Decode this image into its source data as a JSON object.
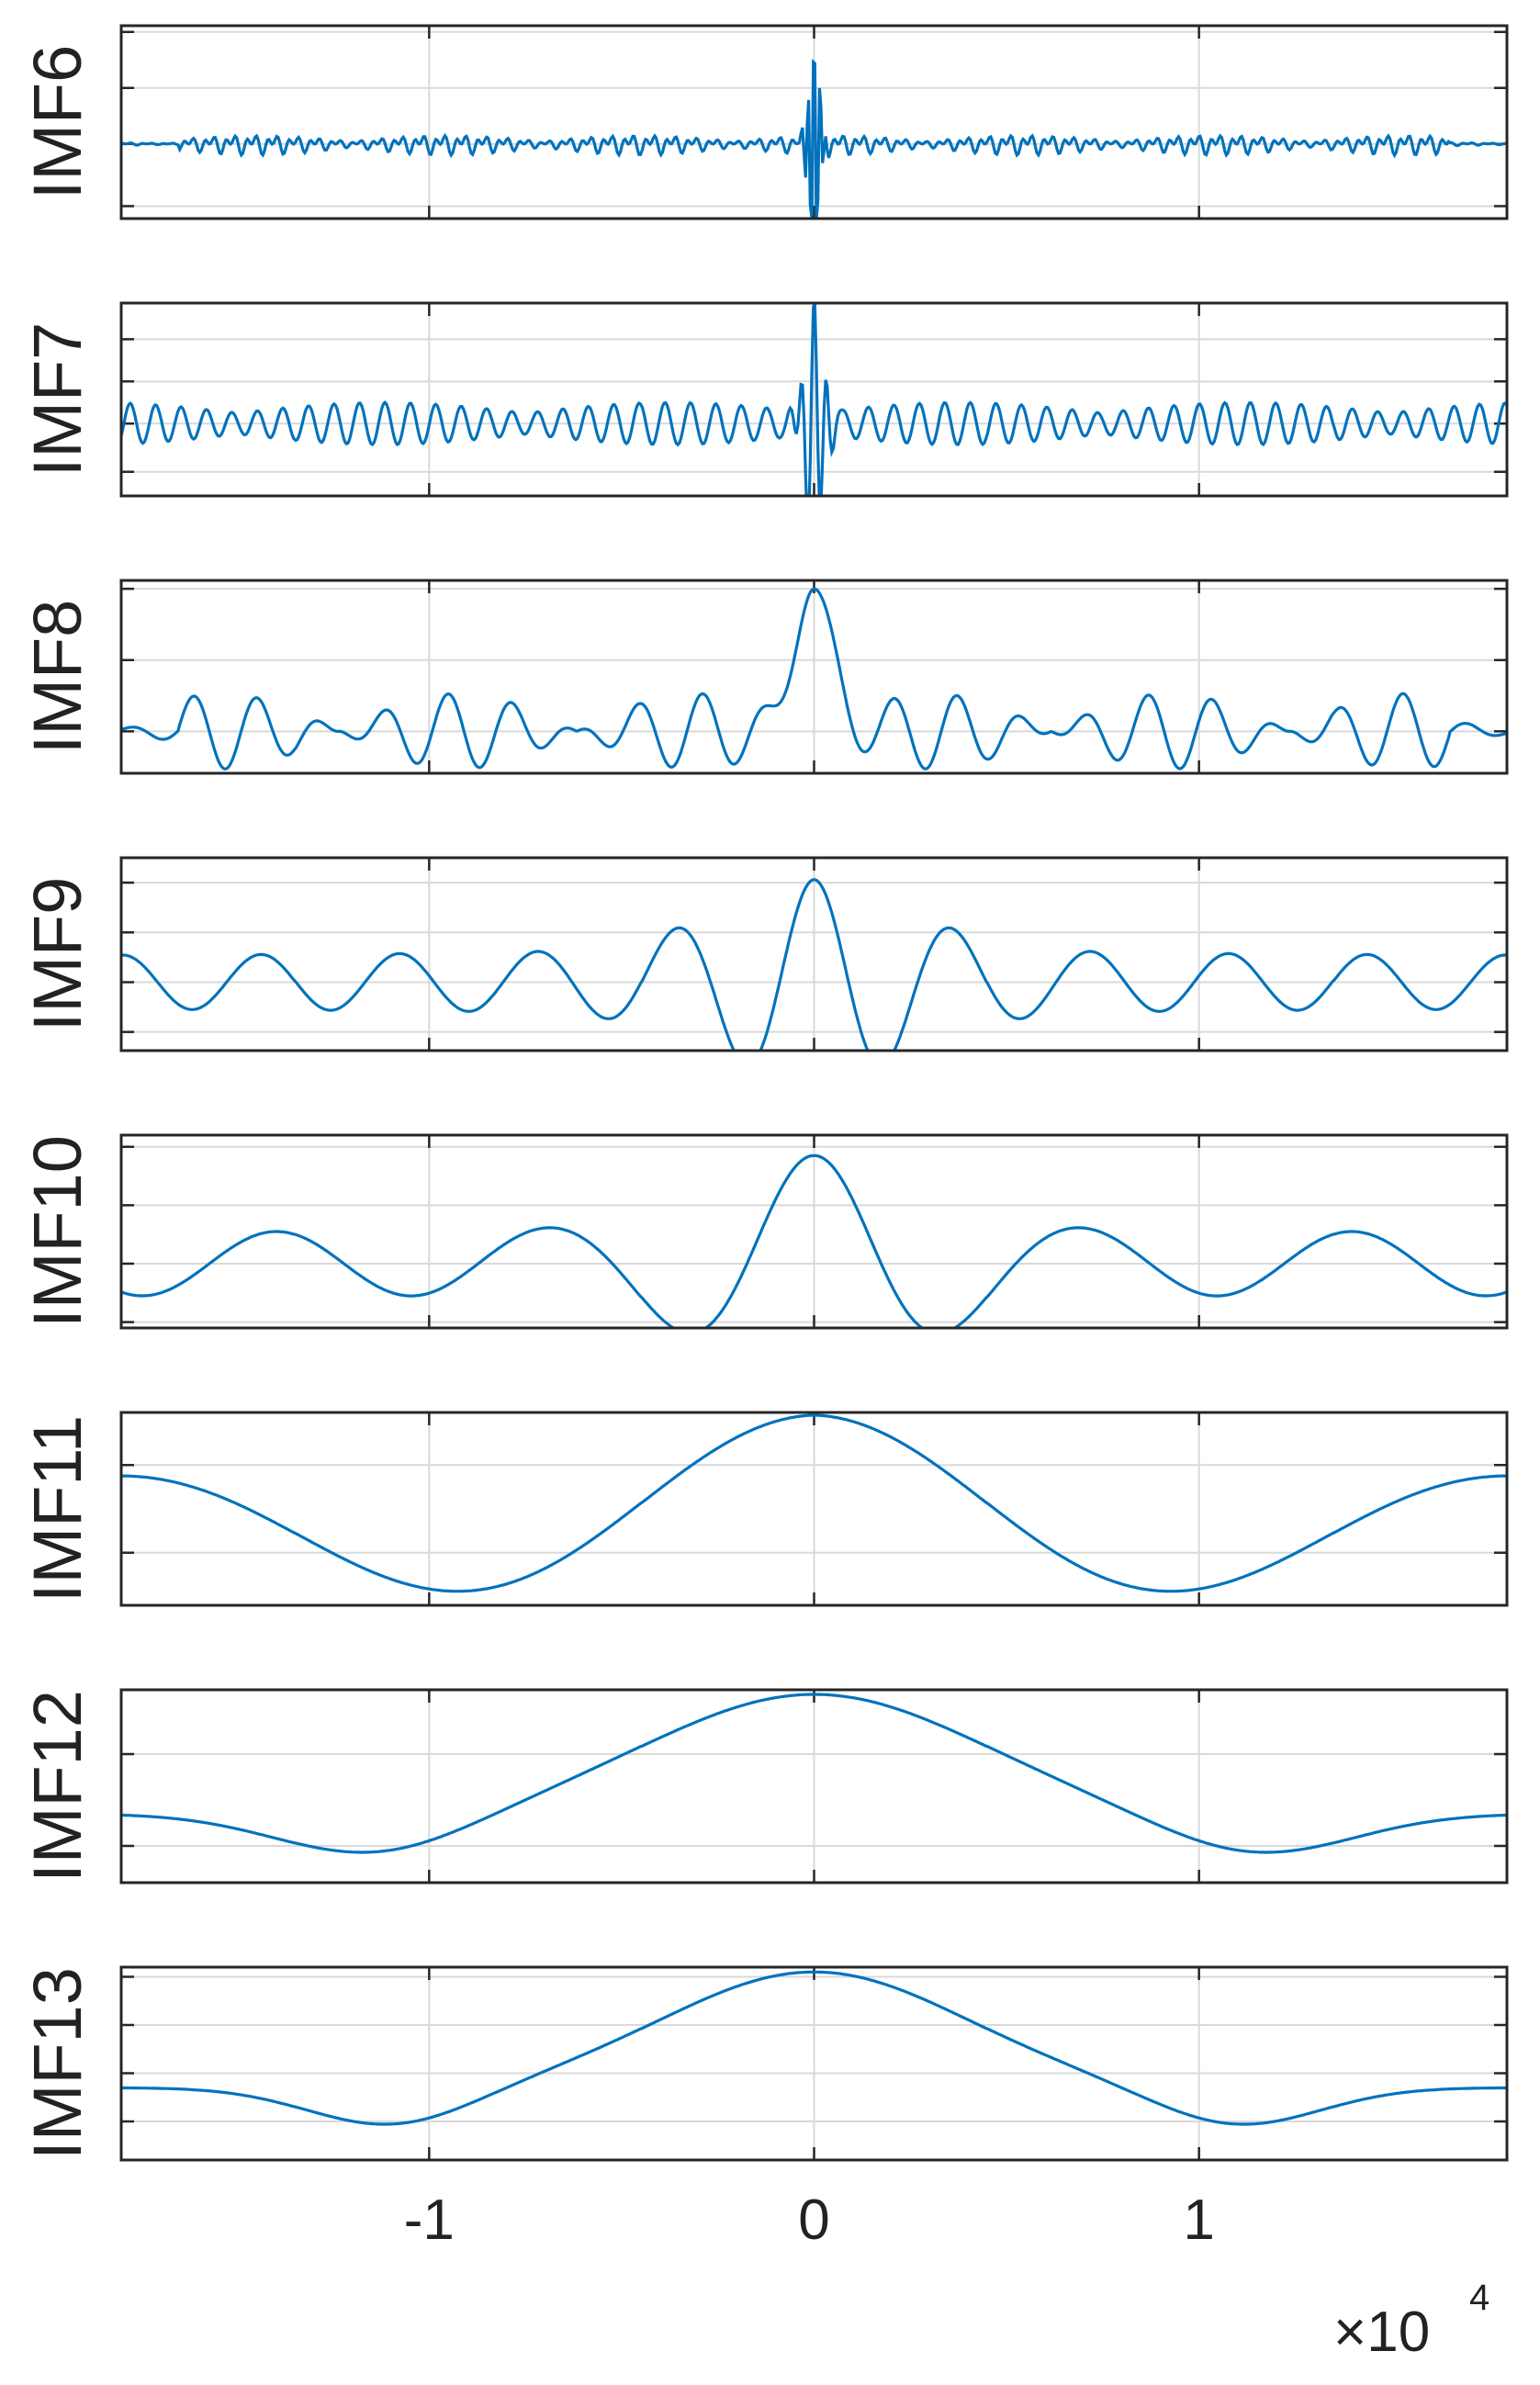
{
  "chart_data": {
    "type": "line",
    "x_unit_label": "×10",
    "x_unit_exponent": "4",
    "xlim": [
      -1.8,
      1.8
    ],
    "x_ticks": [
      -1,
      0,
      1
    ],
    "x_tick_labels": [
      "-1",
      "0",
      "1"
    ],
    "grid": true,
    "line_color": "#0072BD",
    "panels": [
      {
        "ylabel": "IMF6",
        "ylim": [
          -1.2,
          1.9
        ],
        "grid_y": [
          -1,
          0,
          0.9,
          1.8
        ],
        "x": [
          0
        ],
        "y": [
          0
        ]
      },
      {
        "ylabel": "IMF7",
        "ylim": [
          -1.2,
          2.0
        ],
        "grid_y": [
          -0.8,
          0,
          0.7,
          1.4
        ],
        "x": [
          0
        ],
        "y": [
          0
        ]
      },
      {
        "ylabel": "IMF8",
        "ylim": [
          -0.5,
          1.8
        ],
        "grid_y": [
          0,
          0.85,
          1.7
        ],
        "x": [
          0
        ],
        "y": [
          0
        ]
      },
      {
        "ylabel": "IMF9",
        "ylim": [
          -1.1,
          2.0
        ],
        "grid_y": [
          -0.8,
          0,
          0.8,
          1.6
        ],
        "x": [
          0
        ],
        "y": [
          0
        ]
      },
      {
        "ylabel": "IMF10",
        "ylim": [
          -1.1,
          2.2
        ],
        "grid_y": [
          -1,
          0,
          1,
          2
        ],
        "x": [
          0
        ],
        "y": [
          0
        ]
      },
      {
        "ylabel": "IMF11",
        "ylim": [
          -0.6,
          1.6
        ],
        "grid_y": [
          0,
          1
        ],
        "x": [
          0
        ],
        "y": [
          0
        ]
      },
      {
        "ylabel": "IMF12",
        "ylim": [
          -0.4,
          1.7
        ],
        "grid_y": [
          0,
          1
        ],
        "x": [
          0
        ],
        "y": [
          0
        ]
      },
      {
        "ylabel": "IMF13",
        "ylim": [
          -0.4,
          1.6
        ],
        "grid_y": [
          0,
          0.5,
          1,
          1.5
        ],
        "x": [
          0
        ],
        "y": [
          0
        ]
      }
    ]
  }
}
